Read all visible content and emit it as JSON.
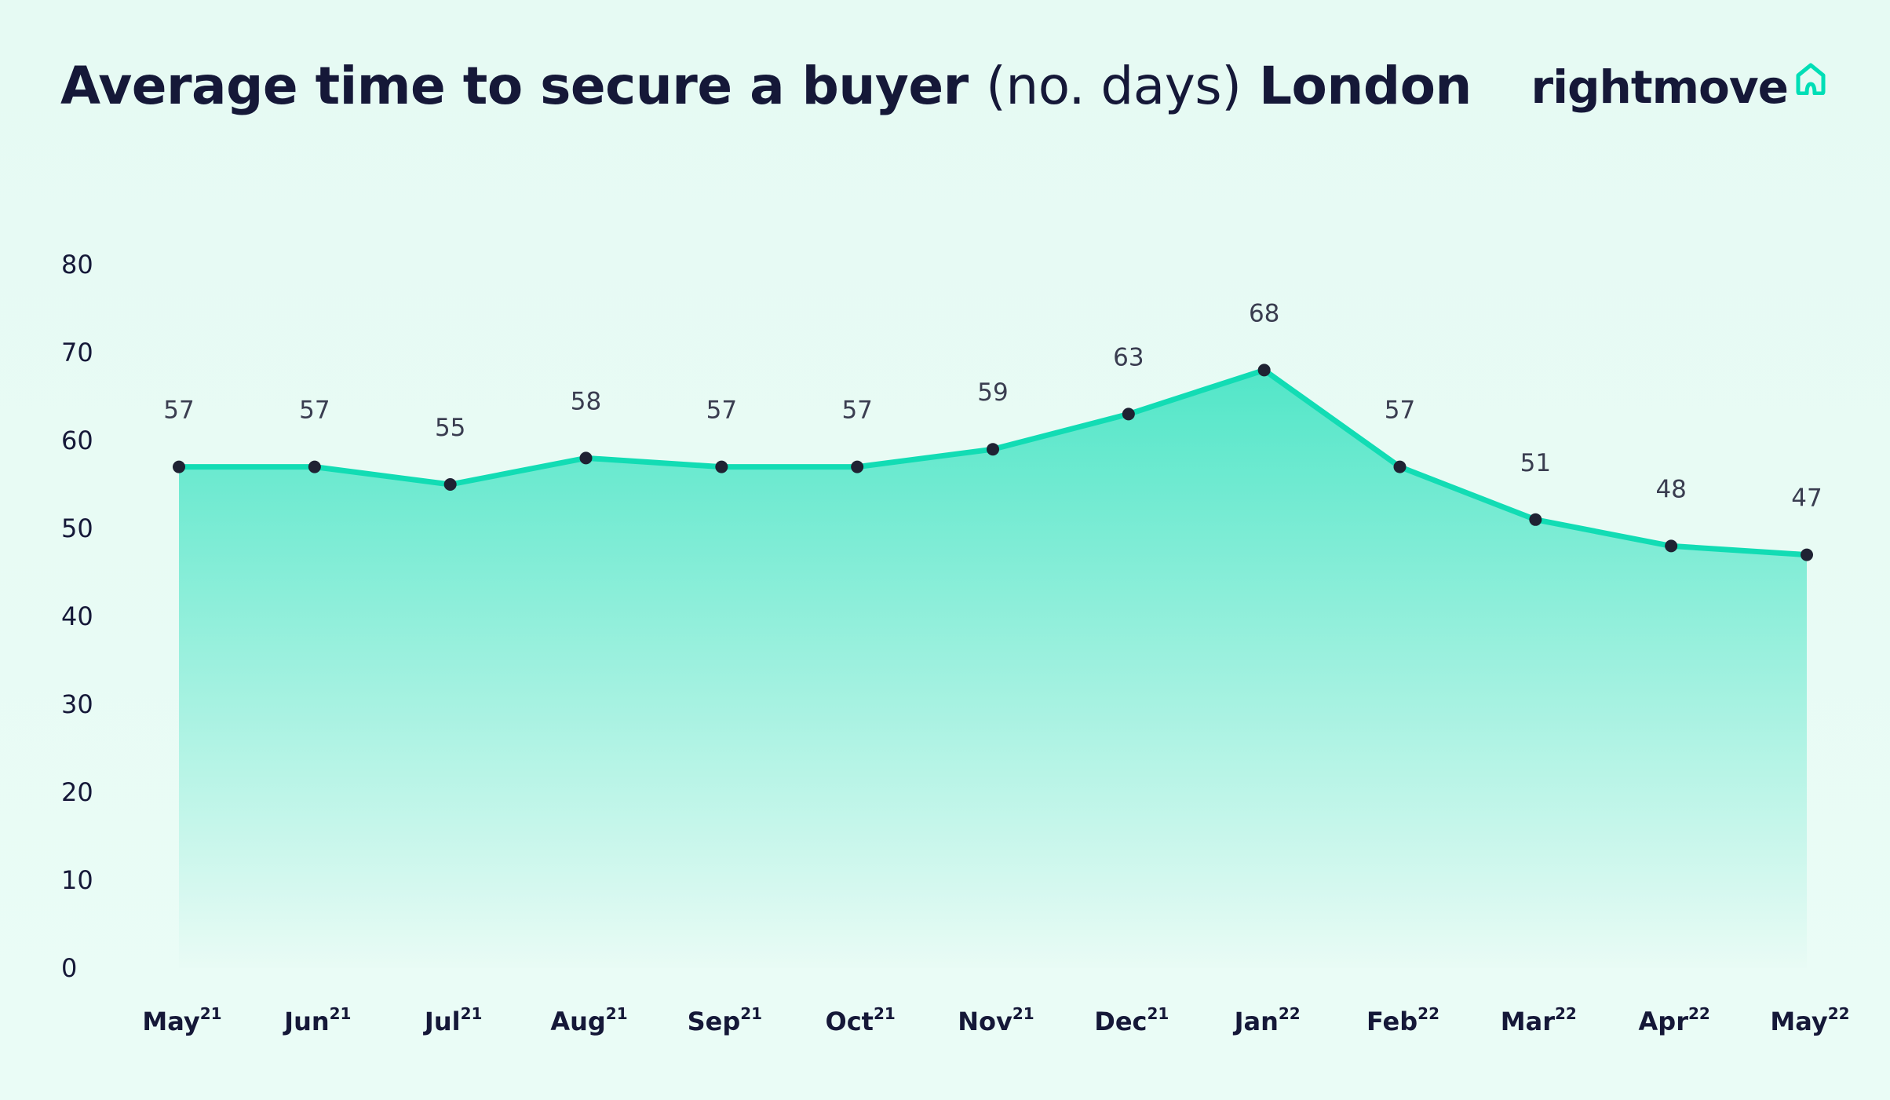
{
  "title": {
    "bold_part": "Average time to secure a buyer",
    "light_part": "(no. days)",
    "region": "London"
  },
  "brand": {
    "name": "rightmove",
    "icon": "house-outline-icon",
    "text_color": "#151838",
    "accent_color": "#00deb6"
  },
  "chart_data": {
    "type": "area",
    "categories": [
      {
        "month": "May",
        "year": "21"
      },
      {
        "month": "Jun",
        "year": "21"
      },
      {
        "month": "Jul",
        "year": "21"
      },
      {
        "month": "Aug",
        "year": "21"
      },
      {
        "month": "Sep",
        "year": "21"
      },
      {
        "month": "Oct",
        "year": "21"
      },
      {
        "month": "Nov",
        "year": "21"
      },
      {
        "month": "Dec",
        "year": "21"
      },
      {
        "month": "Jan",
        "year": "22"
      },
      {
        "month": "Feb",
        "year": "22"
      },
      {
        "month": "Mar",
        "year": "22"
      },
      {
        "month": "Apr",
        "year": "22"
      },
      {
        "month": "May",
        "year": "22"
      }
    ],
    "values": [
      57,
      57,
      55,
      58,
      57,
      57,
      59,
      63,
      68,
      57,
      51,
      48,
      47
    ],
    "ylim": [
      0,
      80
    ],
    "yticks": [
      0,
      10,
      20,
      30,
      40,
      50,
      60,
      70,
      80
    ],
    "grid": false,
    "line_color": "#12dcb4",
    "marker_color": "#1f2233"
  }
}
